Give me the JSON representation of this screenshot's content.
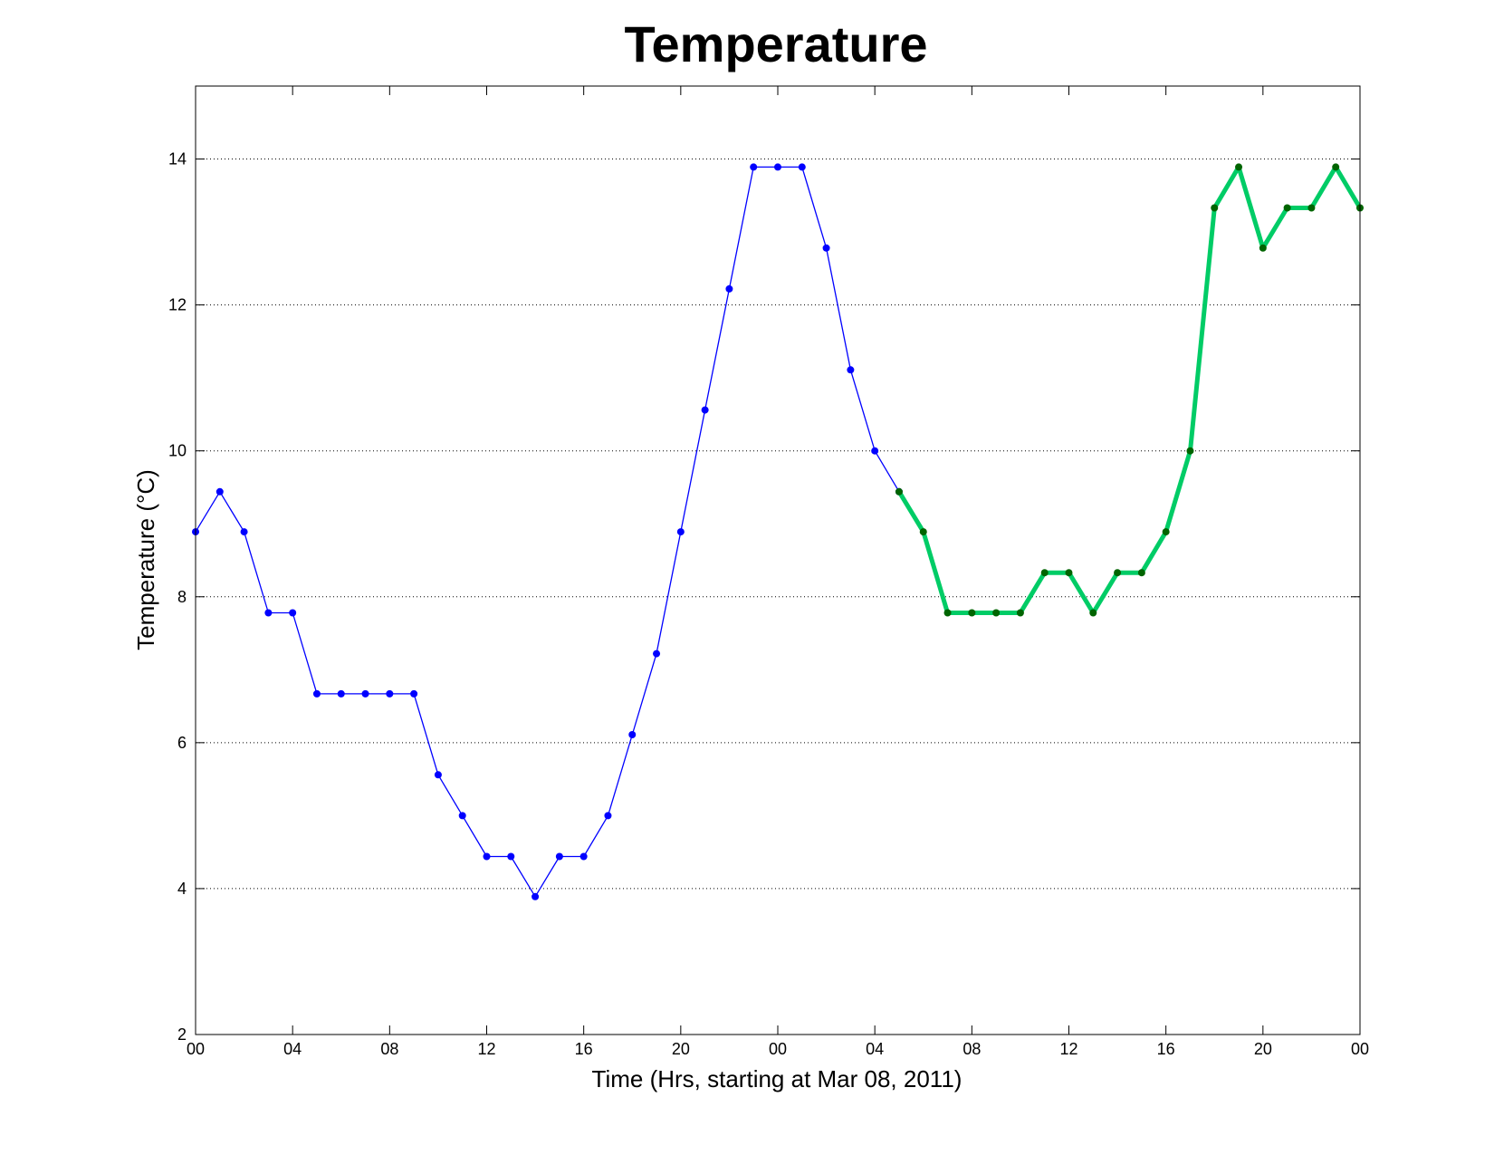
{
  "chart_data": {
    "type": "line",
    "title": "Temperature",
    "xlabel": "Time (Hrs, starting at Mar 08, 2011)",
    "ylabel": "Temperature (°C)",
    "x_unit": "hours",
    "xlim": [
      0,
      48
    ],
    "ylim": [
      2,
      15
    ],
    "x_tick_values": [
      0,
      4,
      8,
      12,
      16,
      20,
      24,
      28,
      32,
      36,
      40,
      44,
      48
    ],
    "x_tick_labels": [
      "00",
      "04",
      "08",
      "12",
      "16",
      "20",
      "00",
      "04",
      "08",
      "12",
      "16",
      "20",
      "00"
    ],
    "y_ticks": [
      2,
      4,
      6,
      8,
      10,
      12,
      14
    ],
    "grid": "horizontal dotted",
    "series": [
      {
        "color": "#0000ff",
        "line_style": "thin with dot markers",
        "x": [
          0,
          1,
          2,
          3,
          4,
          5,
          6,
          7,
          8,
          9,
          10,
          11,
          12,
          13,
          14,
          15,
          16,
          17,
          18,
          19,
          20,
          21,
          22,
          23,
          24,
          25,
          26,
          27,
          28,
          29
        ],
        "y": [
          8.89,
          9.44,
          8.89,
          7.78,
          7.78,
          6.67,
          6.67,
          6.67,
          6.67,
          6.67,
          5.56,
          5.0,
          4.44,
          4.44,
          3.89,
          4.44,
          4.44,
          5.0,
          6.11,
          7.22,
          8.89,
          10.56,
          12.22,
          13.89,
          13.89,
          13.89,
          12.78,
          11.11,
          10.0,
          9.44
        ]
      },
      {
        "color": "#00cc66",
        "marker_color": "#006400",
        "line_style": "thick with dot markers",
        "x": [
          29,
          30,
          31,
          32,
          33,
          34,
          35,
          36,
          37,
          38,
          39,
          40,
          41,
          42,
          43,
          44,
          45,
          46,
          47,
          48
        ],
        "y": [
          9.44,
          8.89,
          7.78,
          7.78,
          7.78,
          7.78,
          8.33,
          8.33,
          7.78,
          8.33,
          8.33,
          8.89,
          10.0,
          13.33,
          13.89,
          12.78,
          13.33,
          13.33,
          13.89,
          13.33
        ]
      }
    ]
  }
}
